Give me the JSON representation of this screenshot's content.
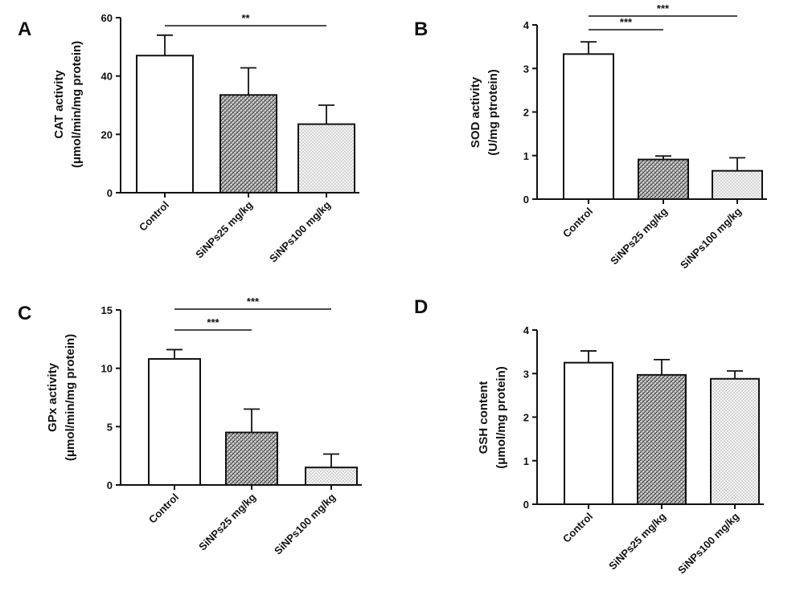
{
  "chart_data": [
    {
      "type": "bar",
      "panel": "A",
      "categories": [
        "Control",
        "SiNPs25 mg/kg",
        "SiNPs100 mg/kg"
      ],
      "values": [
        47,
        33.5,
        23.5
      ],
      "errors": [
        7,
        9.3,
        6.5
      ],
      "ylabel_lines": [
        "CAT activity",
        "(μmol/min/mg protein)"
      ],
      "ylim": [
        0,
        60
      ],
      "yticks": [
        0,
        20,
        40,
        60
      ],
      "significance": [
        {
          "from": 0,
          "to": 2,
          "label": "**"
        }
      ]
    },
    {
      "type": "bar",
      "panel": "B",
      "categories": [
        "Control",
        "SiNPs25 mg/kg",
        "SiNPs100 mg/kg"
      ],
      "values": [
        3.33,
        0.91,
        0.65
      ],
      "errors": [
        0.28,
        0.08,
        0.3
      ],
      "ylabel_lines": [
        "SOD activity",
        "(U/mg ptrotein)"
      ],
      "ylim": [
        0,
        4
      ],
      "yticks": [
        0,
        1,
        2,
        3,
        4
      ],
      "significance": [
        {
          "from": 0,
          "to": 2,
          "label": "***"
        },
        {
          "from": 0,
          "to": 1,
          "label": "***"
        }
      ]
    },
    {
      "type": "bar",
      "panel": "C",
      "categories": [
        "Control",
        "SiNPs25 mg/kg",
        "SiNPs100 mg/kg"
      ],
      "values": [
        10.8,
        4.5,
        1.5
      ],
      "errors": [
        0.8,
        2.0,
        1.15
      ],
      "ylabel_lines": [
        "GPx activity",
        "(μmol/min/mg protein)"
      ],
      "ylim": [
        0,
        15
      ],
      "yticks": [
        0,
        5,
        10,
        15
      ],
      "significance": [
        {
          "from": 0,
          "to": 2,
          "label": "***"
        },
        {
          "from": 0,
          "to": 1,
          "label": "***"
        }
      ]
    },
    {
      "type": "bar",
      "panel": "D",
      "categories": [
        "Control",
        "SiNPs25 mg/kg",
        "SiNPs100 mg/kg"
      ],
      "values": [
        3.25,
        2.97,
        2.88
      ],
      "errors": [
        0.27,
        0.35,
        0.18
      ],
      "ylabel_lines": [
        "GSH content",
        "(μmol/mg protein)"
      ],
      "ylim": [
        0,
        4
      ],
      "yticks": [
        0,
        1,
        2,
        3,
        4
      ],
      "significance": []
    }
  ]
}
